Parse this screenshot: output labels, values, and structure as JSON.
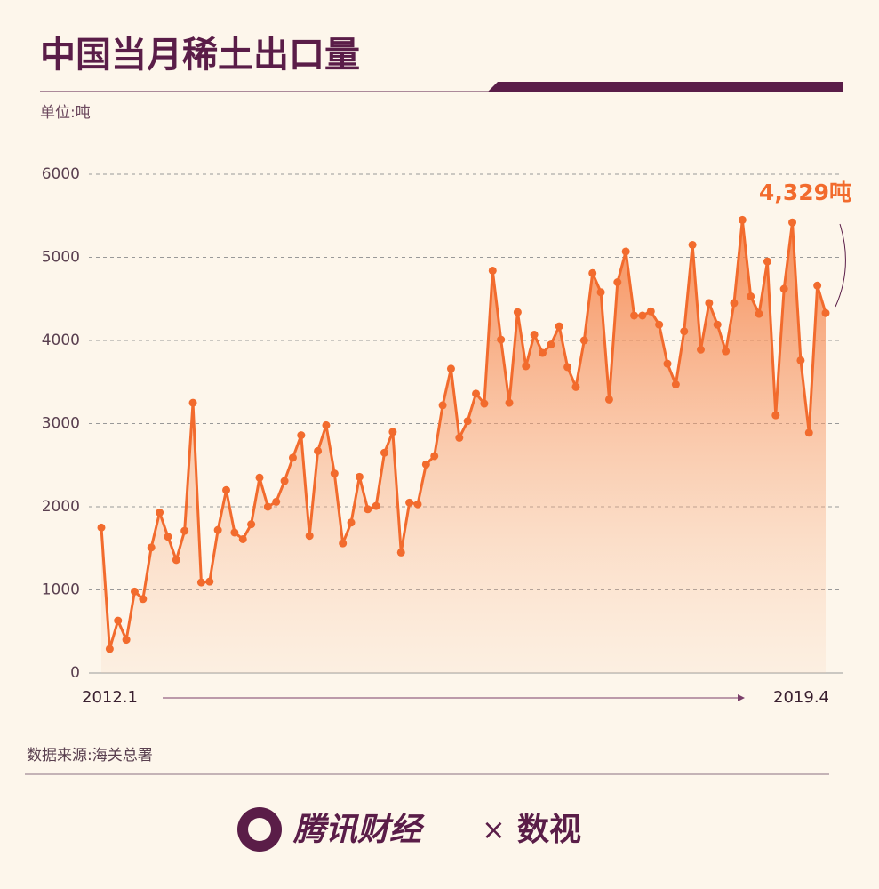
{
  "chart_data": {
    "type": "line",
    "title": "中国当月稀土出口量",
    "subtitle": "单位:吨",
    "source": "数据来源:海关总署",
    "categories": [
      "2012.1",
      null,
      null,
      null,
      null,
      null,
      null,
      null,
      null,
      null,
      null,
      null,
      null,
      null,
      null,
      null,
      null,
      null,
      null,
      null,
      null,
      null,
      null,
      null,
      null,
      null,
      null,
      null,
      null,
      null,
      null,
      null,
      null,
      null,
      null,
      null,
      null,
      null,
      null,
      null,
      null,
      null,
      null,
      null,
      null,
      null,
      null,
      null,
      null,
      null,
      null,
      null,
      null,
      null,
      null,
      null,
      null,
      null,
      null,
      null,
      null,
      null,
      null,
      null,
      null,
      null,
      null,
      null,
      null,
      null,
      null,
      null,
      null,
      null,
      null,
      null,
      null,
      null,
      null,
      null,
      null,
      null,
      null,
      null,
      null,
      null,
      null,
      "2019.4"
    ],
    "values": [
      1750,
      290,
      630,
      400,
      980,
      890,
      1510,
      1930,
      1640,
      1360,
      1710,
      3250,
      1090,
      1100,
      1720,
      2200,
      1690,
      1610,
      1790,
      2350,
      2000,
      2060,
      2310,
      2590,
      2860,
      1650,
      2670,
      2980,
      2400,
      1560,
      1810,
      2360,
      1970,
      2010,
      2650,
      2900,
      1450,
      2050,
      2030,
      2510,
      2610,
      3220,
      3660,
      2830,
      3030,
      3360,
      3240,
      4840,
      4010,
      3250,
      4340,
      3690,
      4070,
      3850,
      3950,
      4170,
      3680,
      3440,
      4000,
      4810,
      4580,
      3290,
      4700,
      5070,
      4300,
      4300,
      4350,
      4190,
      3720,
      3470,
      4110,
      5150,
      3890,
      4450,
      4190,
      3870,
      4450,
      5450,
      4530,
      4320,
      4950,
      3100,
      4620,
      5420,
      3760,
      2890,
      4660,
      4329
    ],
    "value_labels": [
      null,
      null,
      null,
      null,
      null,
      null,
      null,
      null,
      null,
      null,
      null,
      null,
      null,
      null,
      null,
      null,
      null,
      null,
      null,
      null,
      null,
      null,
      null,
      null,
      null,
      null,
      null,
      null,
      null,
      null,
      null,
      null,
      null,
      null,
      null,
      null,
      null,
      null,
      null,
      null,
      null,
      null,
      null,
      null,
      null,
      null,
      null,
      null,
      null,
      null,
      null,
      null,
      null,
      null,
      null,
      null,
      null,
      null,
      null,
      null,
      null,
      null,
      null,
      null,
      null,
      null,
      null,
      null,
      null,
      null,
      null,
      null,
      null,
      null,
      null,
      null,
      null,
      null,
      null,
      null,
      null,
      null,
      null,
      null,
      null,
      null,
      null,
      "4,329吨"
    ],
    "color": "#f26b2d",
    "ylim": [
      0,
      6000
    ],
    "yticks": [
      0,
      1000,
      2000,
      3000,
      4000,
      5000,
      6000
    ],
    "grid": true
  },
  "footer": {
    "brand": "腾讯财经",
    "separator": "×",
    "partner": "数视"
  }
}
